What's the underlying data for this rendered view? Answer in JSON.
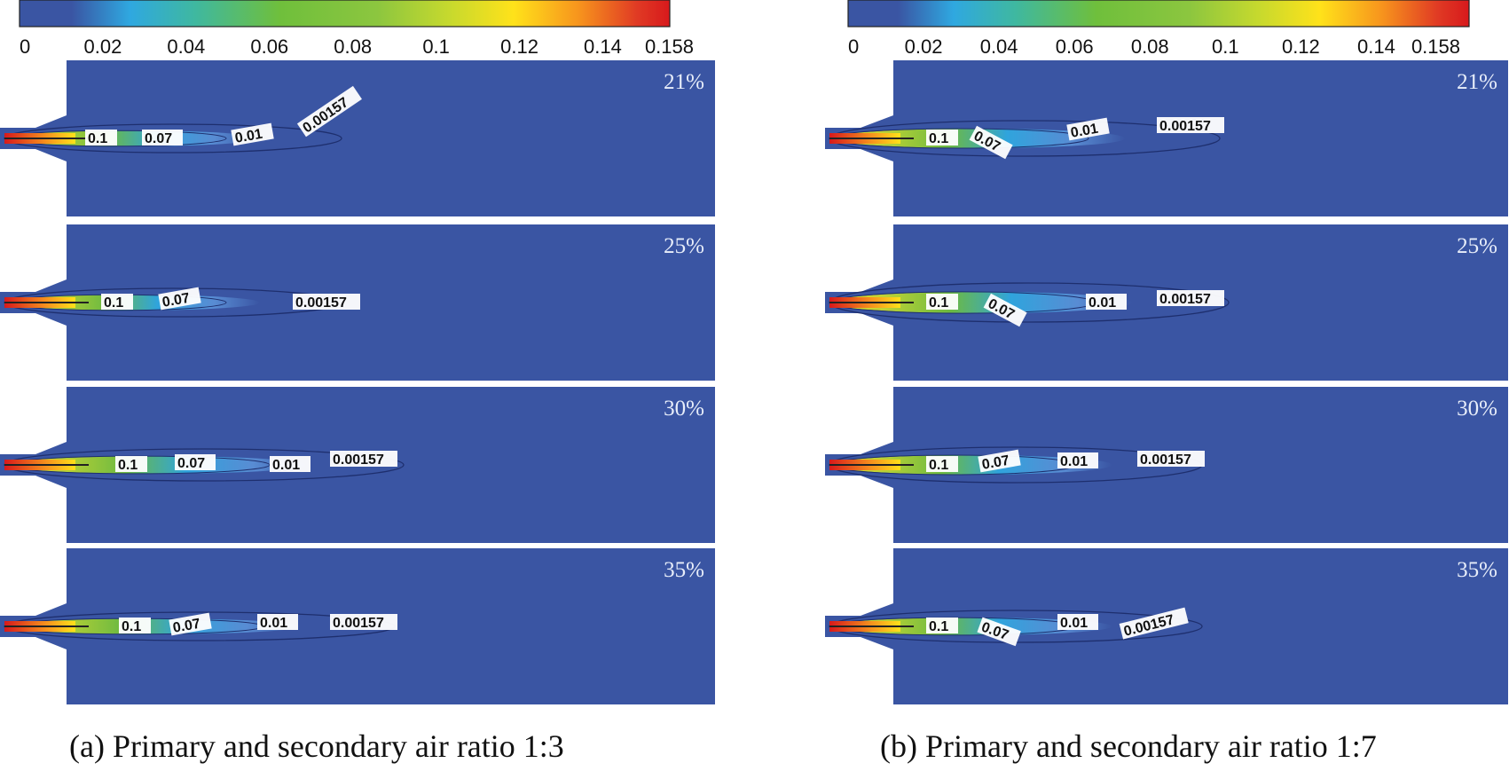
{
  "colorbar": {
    "ticks": [
      "0",
      "0.02",
      "0.04",
      "0.06",
      "0.08",
      "0.1",
      "0.12",
      "0.14",
      "0.158"
    ],
    "tick_values": [
      0,
      0.02,
      0.04,
      0.06,
      0.08,
      0.1,
      0.12,
      0.14,
      0.158
    ],
    "min": 0,
    "max": 0.158
  },
  "colors": {
    "background_field": "#3a55a3",
    "contour_line": "#1e2f6e",
    "colormap": [
      "#3a55a3",
      "#3a55a3",
      "#2fa8e0",
      "#3fb8a0",
      "#6fbf3c",
      "#8cc63f",
      "#c6d92e",
      "#ffe21a",
      "#f7941d",
      "#e03a24",
      "#d7191c"
    ]
  },
  "panels": [
    {
      "id": "a",
      "caption": "(a) Primary and secondary air ratio 1:3",
      "subplots": [
        {
          "label": "21%",
          "contour_labels": [
            "0.1",
            "0.07",
            "0.01",
            "0.00157"
          ]
        },
        {
          "label": "25%",
          "contour_labels": [
            "0.1",
            "0.07",
            "0.00157"
          ]
        },
        {
          "label": "30%",
          "contour_labels": [
            "0.1",
            "0.07",
            "0.01",
            "0.00157"
          ]
        },
        {
          "label": "35%",
          "contour_labels": [
            "0.1",
            "0.07",
            "0.01",
            "0.00157"
          ]
        }
      ]
    },
    {
      "id": "b",
      "caption": "(b) Primary and secondary air ratio 1:7",
      "subplots": [
        {
          "label": "21%",
          "contour_labels": [
            "0.1",
            "0.07",
            "0.01",
            "0.00157"
          ]
        },
        {
          "label": "25%",
          "contour_labels": [
            "0.1",
            "0.07",
            "0.01",
            "0.00157"
          ]
        },
        {
          "label": "30%",
          "contour_labels": [
            "0.1",
            "0.07",
            "0.01",
            "0.00157"
          ]
        },
        {
          "label": "35%",
          "contour_labels": [
            "0.1",
            "0.07",
            "0.01",
            "0.00157"
          ]
        }
      ]
    }
  ]
}
